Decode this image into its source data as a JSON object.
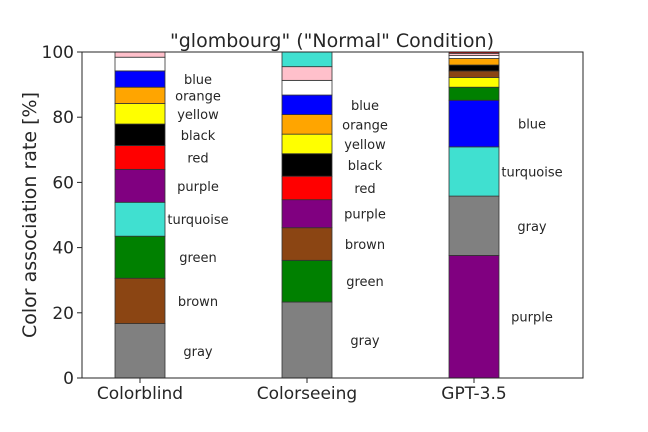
{
  "chart_data": {
    "type": "bar",
    "stacked": true,
    "title": "\"glombourg\" (\"Normal\" Condition)",
    "xlabel": "",
    "ylabel": "Color association rate [%]",
    "ylim": [
      0,
      100
    ],
    "yticks": [
      0,
      20,
      40,
      60,
      80,
      100
    ],
    "grid": false,
    "legend": "none",
    "categories": [
      "Colorblind",
      "Colorseeing",
      "GPT-3.5"
    ],
    "stacks": [
      {
        "category": "Colorblind",
        "segments": [
          {
            "label": "gray",
            "value": 16.7,
            "color": "#808080",
            "show_label": true
          },
          {
            "label": "brown",
            "value": 13.9,
            "color": "#8B4513",
            "show_label": true
          },
          {
            "label": "green",
            "value": 12.9,
            "color": "#008000",
            "show_label": true
          },
          {
            "label": "turquoise",
            "value": 10.4,
            "color": "#40E0D0",
            "show_label": true
          },
          {
            "label": "purple",
            "value": 10.1,
            "color": "#800080",
            "show_label": true
          },
          {
            "label": "red",
            "value": 7.3,
            "color": "#FF0000",
            "show_label": true
          },
          {
            "label": "black",
            "value": 6.6,
            "color": "#000000",
            "show_label": true
          },
          {
            "label": "yellow",
            "value": 6.3,
            "color": "#FFFF00",
            "show_label": true
          },
          {
            "label": "orange",
            "value": 5.0,
            "color": "#FFA500",
            "show_label": true
          },
          {
            "label": "blue",
            "value": 5.0,
            "color": "#0000FF",
            "show_label": true
          },
          {
            "label": "white",
            "value": 4.2,
            "color": "#FFFFFF",
            "show_label": false
          },
          {
            "label": "pink",
            "value": 1.6,
            "color": "#FFC0CB",
            "show_label": false
          }
        ]
      },
      {
        "category": "Colorseeing",
        "segments": [
          {
            "label": "gray",
            "value": 23.3,
            "color": "#808080",
            "show_label": true
          },
          {
            "label": "green",
            "value": 12.8,
            "color": "#008000",
            "show_label": true
          },
          {
            "label": "brown",
            "value": 10.0,
            "color": "#8B4513",
            "show_label": true
          },
          {
            "label": "purple",
            "value": 8.6,
            "color": "#800080",
            "show_label": true
          },
          {
            "label": "red",
            "value": 7.2,
            "color": "#FF0000",
            "show_label": true
          },
          {
            "label": "black",
            "value": 6.9,
            "color": "#000000",
            "show_label": true
          },
          {
            "label": "yellow",
            "value": 6.0,
            "color": "#FFFF00",
            "show_label": true
          },
          {
            "label": "orange",
            "value": 6.0,
            "color": "#FFA500",
            "show_label": true
          },
          {
            "label": "blue",
            "value": 6.0,
            "color": "#0000FF",
            "show_label": true
          },
          {
            "label": "white",
            "value": 4.5,
            "color": "#FFFFFF",
            "show_label": false
          },
          {
            "label": "pink",
            "value": 4.2,
            "color": "#FFC0CB",
            "show_label": false
          },
          {
            "label": "turquoise",
            "value": 4.5,
            "color": "#40E0D0",
            "show_label": false
          }
        ]
      },
      {
        "category": "GPT-3.5",
        "segments": [
          {
            "label": "purple",
            "value": 37.6,
            "color": "#800080",
            "show_label": true
          },
          {
            "label": "gray",
            "value": 18.2,
            "color": "#808080",
            "show_label": true
          },
          {
            "label": "turquoise",
            "value": 15.1,
            "color": "#40E0D0",
            "show_label": true
          },
          {
            "label": "blue",
            "value": 14.3,
            "color": "#0000FF",
            "show_label": true
          },
          {
            "label": "green",
            "value": 4.0,
            "color": "#008000",
            "show_label": false
          },
          {
            "label": "yellow",
            "value": 3.0,
            "color": "#FFFF00",
            "show_label": false
          },
          {
            "label": "brown",
            "value": 2.0,
            "color": "#8B4513",
            "show_label": false
          },
          {
            "label": "black",
            "value": 1.8,
            "color": "#000000",
            "show_label": false
          },
          {
            "label": "orange",
            "value": 2.0,
            "color": "#FFA500",
            "show_label": false
          },
          {
            "label": "white",
            "value": 0.9,
            "color": "#FFFFFF",
            "show_label": false
          },
          {
            "label": "pink",
            "value": 0.7,
            "color": "#FFC0CB",
            "show_label": false
          },
          {
            "label": "red",
            "value": 0.4,
            "color": "#FF0000",
            "show_label": false
          }
        ]
      }
    ]
  }
}
